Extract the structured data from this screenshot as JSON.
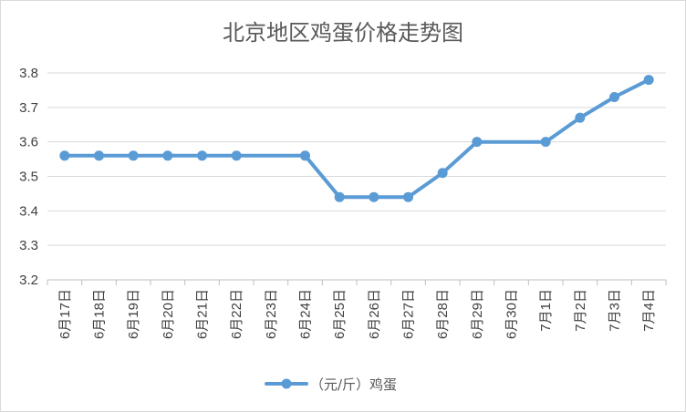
{
  "chart_data": {
    "type": "line",
    "title": "北京地区鸡蛋价格走势图",
    "xlabel": "",
    "ylabel": "",
    "categories": [
      "6月17日",
      "6月18日",
      "6月19日",
      "6月20日",
      "6月21日",
      "6月22日",
      "6月23日",
      "6月24日",
      "6月25日",
      "6月26日",
      "6月27日",
      "6月28日",
      "6月29日",
      "6月30日",
      "7月1日",
      "7月2日",
      "7月3日",
      "7月4日"
    ],
    "series": [
      {
        "name": "（元/斤）鸡蛋",
        "values": [
          3.56,
          3.56,
          3.56,
          3.56,
          3.56,
          3.56,
          null,
          3.56,
          3.44,
          3.44,
          3.44,
          3.51,
          3.6,
          null,
          3.6,
          3.67,
          3.73,
          3.78
        ]
      }
    ],
    "ylim": [
      3.2,
      3.8
    ],
    "yticks": [
      "3.2",
      "3.3",
      "3.4",
      "3.5",
      "3.6",
      "3.7",
      "3.8"
    ],
    "grid": true,
    "legend": "bottom",
    "colors": {
      "series": "#5b9bd5",
      "grid": "#d9d9d9",
      "axis": "#bfbfbf"
    }
  }
}
